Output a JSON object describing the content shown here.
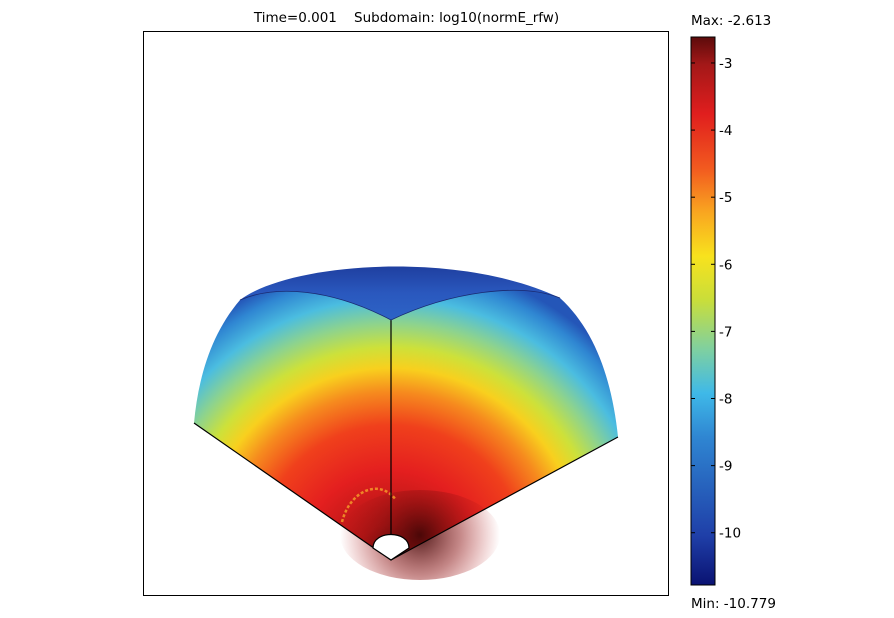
{
  "title": {
    "time": "Time=0.001",
    "subdomain": "Subdomain: log10(normE_rfw)"
  },
  "colorbar": {
    "max_label": "Max: -2.613",
    "min_label": "Min: -10.779",
    "max": -2.613,
    "min": -10.779,
    "ticks": [
      -3,
      -4,
      -5,
      -6,
      -7,
      -8,
      -9,
      -10
    ],
    "colormap": [
      "#0a1272",
      "#1f3fa8",
      "#2a7fd0",
      "#3fb9e8",
      "#7fd0a0",
      "#c9de3a",
      "#f8e21d",
      "#f9a620",
      "#f25a1f",
      "#e01e1e",
      "#a31818",
      "#5c0b0b"
    ]
  },
  "chart_data": {
    "type": "heatmap",
    "title": "Time=0.001    Subdomain: log10(normE_rfw)",
    "quantity": "log10(normE_rfw)",
    "time": 0.001,
    "range": [
      -10.779,
      -2.613
    ],
    "colorbar_ticks": [
      -3,
      -4,
      -5,
      -6,
      -7,
      -8,
      -9,
      -10
    ],
    "regions": [
      {
        "region": "near source (bottom apex)",
        "value": -2.7
      },
      {
        "region": "lower interior",
        "value": -3.8
      },
      {
        "region": "middle band",
        "value": -5.5
      },
      {
        "region": "outer rim",
        "value": -7.5
      },
      {
        "region": "top surface",
        "value": -9.5
      }
    ]
  }
}
